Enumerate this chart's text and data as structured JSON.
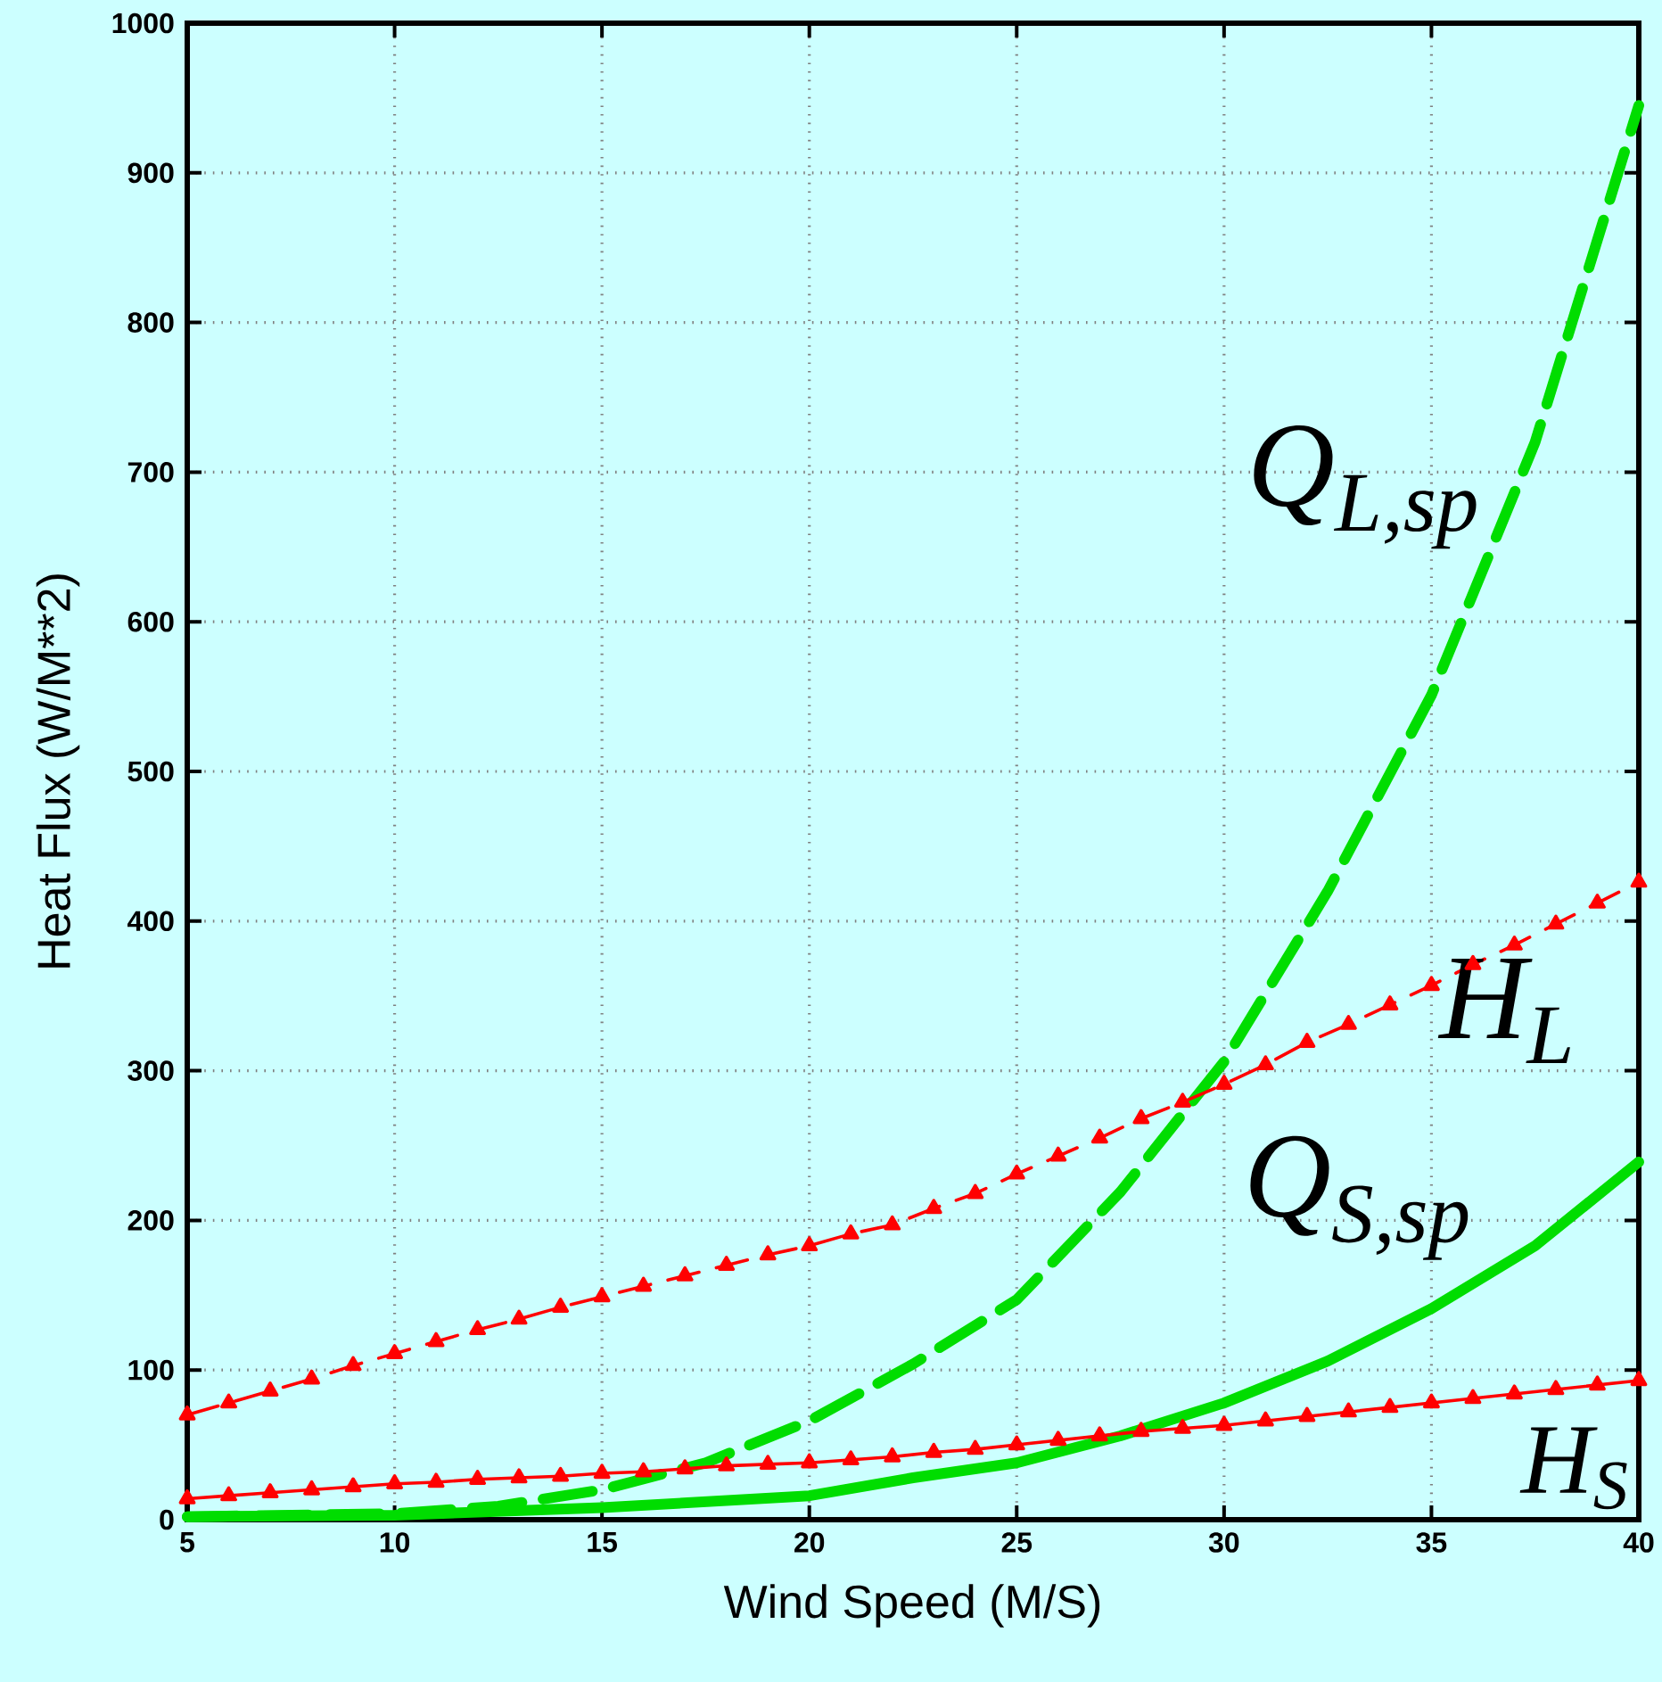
{
  "chart_data": {
    "type": "line",
    "xlabel": "Wind Speed (M/S)",
    "ylabel": "Heat Flux (W/M**2)",
    "xlim": [
      5,
      40
    ],
    "ylim": [
      0,
      1000
    ],
    "xticks": [
      5,
      10,
      15,
      20,
      25,
      30,
      35,
      40
    ],
    "yticks": [
      0,
      100,
      200,
      300,
      400,
      500,
      600,
      700,
      800,
      900,
      1000
    ],
    "grid": true,
    "series": [
      {
        "name": "Q$_{L,sp}$",
        "color": "#00dd00",
        "line_style": "dashed",
        "marker": "none",
        "x": [
          5,
          10,
          12.5,
          15,
          17.5,
          20,
          22.5,
          25,
          27.5,
          30,
          32.5,
          35,
          37.5,
          40
        ],
        "values": [
          2,
          4,
          9,
          20,
          38,
          66,
          104,
          147,
          219,
          306,
          420,
          551,
          720,
          945
        ]
      },
      {
        "name": "H$_{L}$",
        "color": "#ff0000",
        "line_style": "dashed",
        "marker": "triangle",
        "x": [
          5,
          6,
          7,
          8,
          9,
          10,
          11,
          12,
          13,
          14,
          15,
          16,
          17,
          18,
          19,
          20,
          21,
          22,
          23,
          24,
          25,
          26,
          27,
          28,
          29,
          30,
          31,
          32,
          33,
          34,
          35,
          36,
          37,
          38,
          39,
          40
        ],
        "values": [
          70,
          78,
          86,
          94,
          103,
          111,
          119,
          127,
          134,
          142,
          149,
          156,
          163,
          170,
          177,
          183,
          191,
          197,
          208,
          218,
          231,
          243,
          255,
          268,
          279,
          291,
          304,
          319,
          331,
          344,
          357,
          371,
          384,
          398,
          412,
          426
        ]
      },
      {
        "name": "Q$_{S,sp}$",
        "color": "#00dd00",
        "line_style": "solid",
        "marker": "none",
        "x": [
          5,
          10,
          15,
          20,
          22.5,
          25,
          27.5,
          30,
          32.5,
          35,
          37.5,
          40
        ],
        "values": [
          2,
          3,
          8,
          16,
          28,
          38,
          56,
          78,
          106,
          141,
          183,
          239
        ]
      },
      {
        "name": "H$_{S}$",
        "color": "#ff0000",
        "line_style": "solid",
        "marker": "triangle",
        "x": [
          5,
          6,
          7,
          8,
          9,
          10,
          11,
          12,
          13,
          14,
          15,
          16,
          17,
          18,
          19,
          20,
          21,
          22,
          23,
          24,
          25,
          26,
          27,
          28,
          29,
          30,
          31,
          32,
          33,
          34,
          35,
          36,
          37,
          38,
          39,
          40
        ],
        "values": [
          14,
          16,
          18,
          20,
          22,
          24,
          25,
          27,
          28,
          29,
          31,
          32,
          34,
          36,
          37,
          38,
          40,
          42,
          45,
          47,
          50,
          53,
          56,
          59,
          61,
          63,
          66,
          69,
          72,
          75,
          78,
          81,
          84,
          87,
          90,
          93
        ]
      }
    ]
  }
}
